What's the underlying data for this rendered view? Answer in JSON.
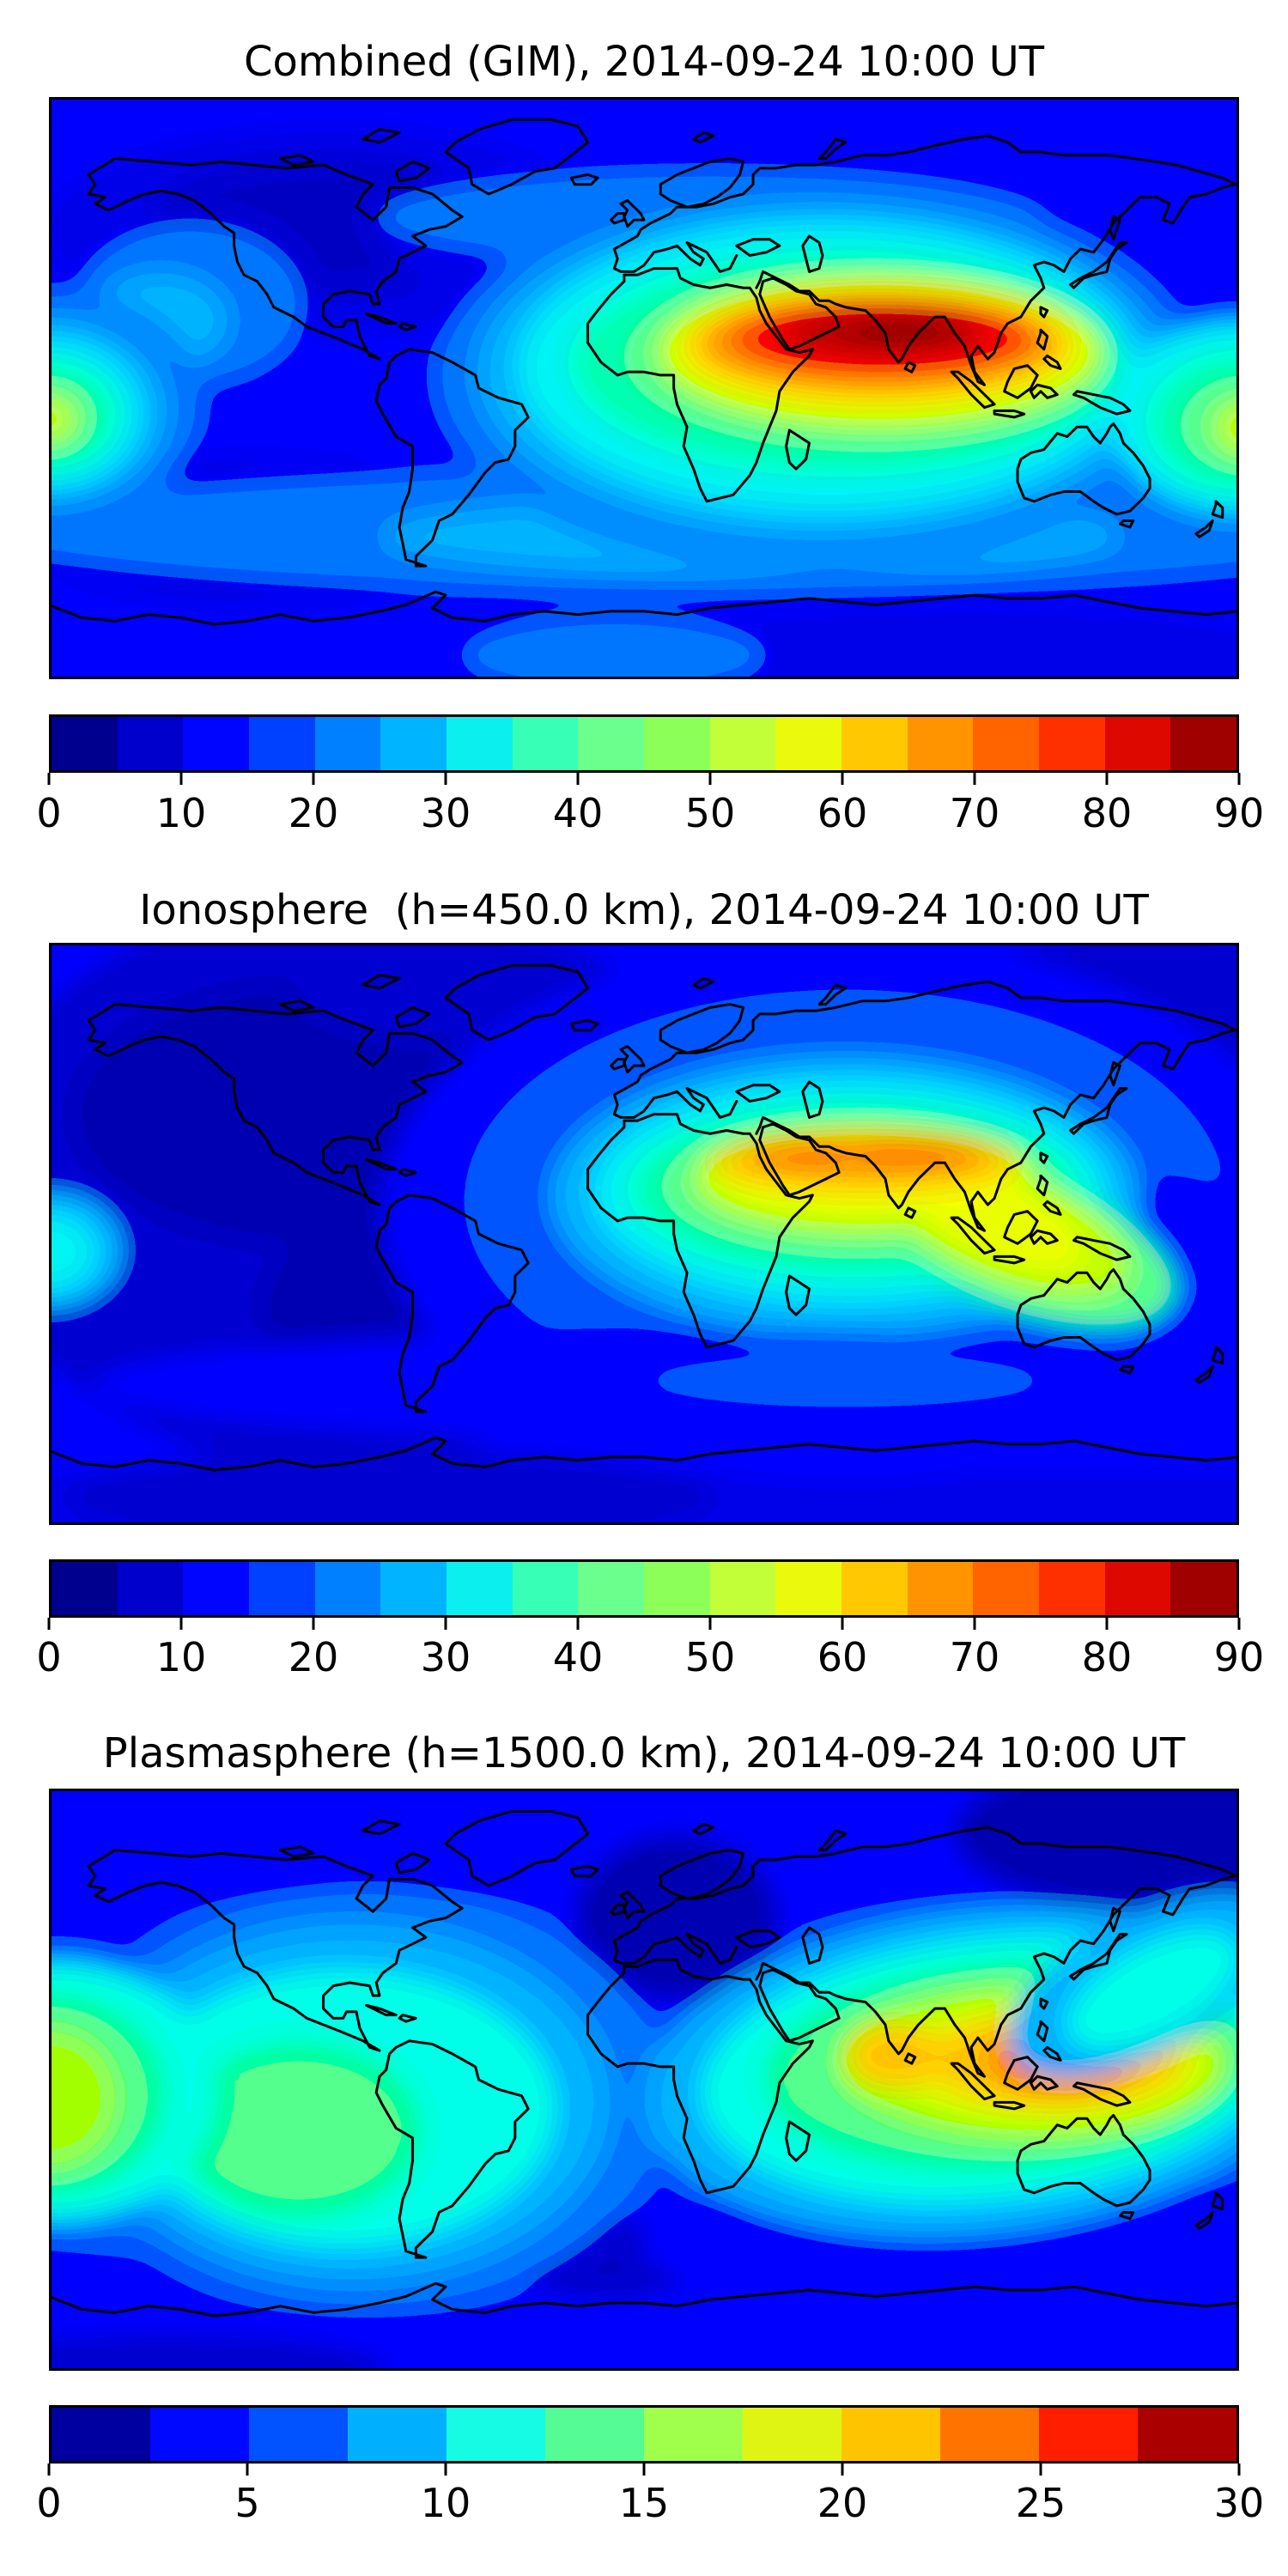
{
  "figure": {
    "background_color": "#ffffff",
    "description": "Three stacked global TEC maps (equirectangular world projection) with jet colorbars"
  },
  "panels": [
    {
      "title": "Combined (GIM), 2014-09-24 10:00 UT",
      "colorbar": {
        "min": 0,
        "max": 90,
        "step_per_band": 5,
        "tick_labels": [
          "0",
          "10",
          "20",
          "30",
          "40",
          "50",
          "60",
          "70",
          "80",
          "90"
        ],
        "segment_colors": [
          "#00008F",
          "#0000CC",
          "#0005FF",
          "#0040FF",
          "#0080FF",
          "#00B4FF",
          "#0CEFEF",
          "#37FFB5",
          "#6BFF8D",
          "#8CFF59",
          "#C3FF38",
          "#EBFA0C",
          "#FFC800",
          "#FF9400",
          "#FF6400",
          "#FF3000",
          "#DD0800",
          "#9F0000"
        ]
      }
    },
    {
      "title": "Ionosphere  (h=450.0 km), 2014-09-24 10:00 UT",
      "colorbar": {
        "min": 0,
        "max": 90,
        "step_per_band": 5,
        "tick_labels": [
          "0",
          "10",
          "20",
          "30",
          "40",
          "50",
          "60",
          "70",
          "80",
          "90"
        ],
        "segment_colors": [
          "#00008F",
          "#0000CC",
          "#0005FF",
          "#0040FF",
          "#0080FF",
          "#00B4FF",
          "#0CEFEF",
          "#37FFB5",
          "#6BFF8D",
          "#8CFF59",
          "#C3FF38",
          "#EBFA0C",
          "#FFC800",
          "#FF9400",
          "#FF6400",
          "#FF3000",
          "#DD0800",
          "#9F0000"
        ]
      }
    },
    {
      "title": "Plasmasphere (h=1500.0 km), 2014-09-24 10:00 UT",
      "colorbar": {
        "min": 0,
        "max": 30,
        "step_per_band": 2.5,
        "tick_labels": [
          "0",
          "5",
          "10",
          "15",
          "20",
          "25",
          "30"
        ],
        "segment_colors": [
          "#0000A0",
          "#0008FF",
          "#0053FF",
          "#00B0FF",
          "#16FBE3",
          "#55FB94",
          "#A0FF4A",
          "#E0F414",
          "#FFC400",
          "#FF7300",
          "#FF1E00",
          "#AA0000"
        ]
      }
    }
  ],
  "chart_data": [
    {
      "type": "heatmap",
      "title": "Combined (GIM), 2014-09-24 10:00 UT",
      "projection": "equirectangular world map with coastlines",
      "colorbar_range": [
        0,
        90
      ],
      "colorbar_ticks": [
        0,
        10,
        20,
        30,
        40,
        50,
        60,
        70,
        80,
        90
      ],
      "colormap": "jet (18 discrete bands)",
      "peak_value_band": "85-90",
      "peak_location": "Arabia / northern India (~15-25N, 40-100E)",
      "low_value_band": "5-15 over North America, southern Pacific and polar latitudes",
      "secondary_maximum": "equatorial band at map left/right edge (~180W/E) reaching 50-55"
    },
    {
      "type": "heatmap",
      "title": "Ionosphere  (h=450.0 km), 2014-09-24 10:00 UT",
      "projection": "equirectangular world map with coastlines",
      "colorbar_range": [
        0,
        90
      ],
      "colorbar_ticks": [
        0,
        10,
        20,
        30,
        40,
        50,
        60,
        70,
        80,
        90
      ],
      "colormap": "jet (18 discrete bands)",
      "peak_value_band": "65-70",
      "peak_location": "Arabia through northern India (~20-28N)",
      "low_value_band": "5-10 over the Americas and adjacent oceans"
    },
    {
      "type": "heatmap",
      "title": "Plasmasphere (h=1500.0 km), 2014-09-24 10:00 UT",
      "projection": "equirectangular world map with coastlines",
      "colorbar_range": [
        0,
        30
      ],
      "colorbar_ticks": [
        0,
        5,
        10,
        15,
        20,
        25,
        30
      ],
      "colormap": "jet (12 discrete bands)",
      "peak_value_band": "25-27.5",
      "peak_location": "maritime Southeast Asia / Philippines (~0-10N, 120-135E)",
      "low_value_band": "0-2.5 over Europe and northeast Asia high latitudes",
      "secondary_maximum": "equatorial Pacific at map left edge reaching 15-17.5"
    }
  ]
}
